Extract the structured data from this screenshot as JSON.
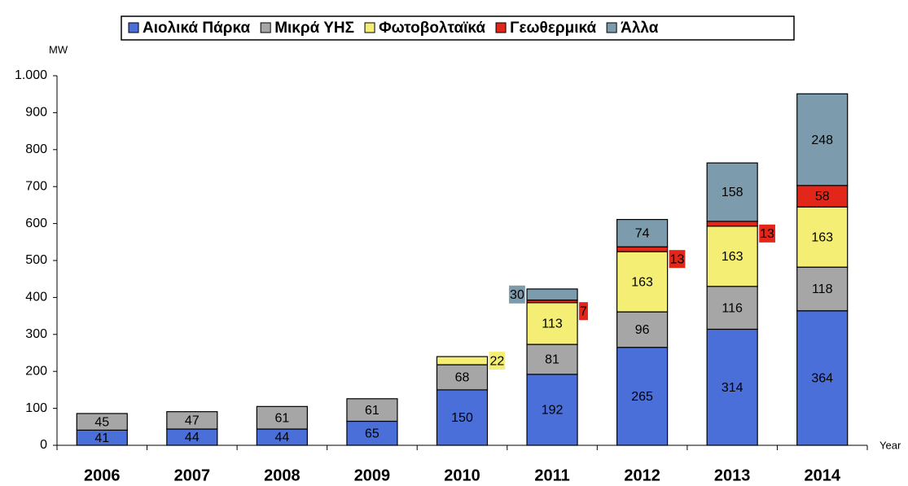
{
  "chart_data": {
    "type": "stacked_bar",
    "ylabel": "MW",
    "xlabel": "Year",
    "categories": [
      "2006",
      "2007",
      "2008",
      "2009",
      "2010",
      "2011",
      "2012",
      "2013",
      "2014"
    ],
    "series": [
      {
        "name": "Αιολικά Πάρκα",
        "color": "#4a6fd8",
        "values": [
          41,
          44,
          44,
          65,
          150,
          192,
          265,
          314,
          364
        ]
      },
      {
        "name": "Μικρά ΥΗΣ",
        "color": "#a6a6a6",
        "values": [
          45,
          47,
          61,
          61,
          68,
          81,
          96,
          116,
          118
        ]
      },
      {
        "name": "Φωτοβολταϊκά",
        "color": "#f4ef74",
        "values": [
          null,
          null,
          null,
          null,
          22,
          113,
          163,
          163,
          163
        ]
      },
      {
        "name": "Γεωθερμικά",
        "color": "#e3261a",
        "values": [
          null,
          null,
          null,
          null,
          null,
          7,
          13,
          13,
          58
        ]
      },
      {
        "name": "Άλλα",
        "color": "#7c9cae",
        "values": [
          null,
          null,
          null,
          null,
          null,
          30,
          74,
          158,
          248
        ]
      }
    ],
    "ylim": [
      0,
      1000
    ],
    "yticks": [
      0,
      100,
      200,
      300,
      400,
      500,
      600,
      700,
      800,
      900,
      {
        "value": 1000,
        "label": "1.000"
      }
    ]
  }
}
